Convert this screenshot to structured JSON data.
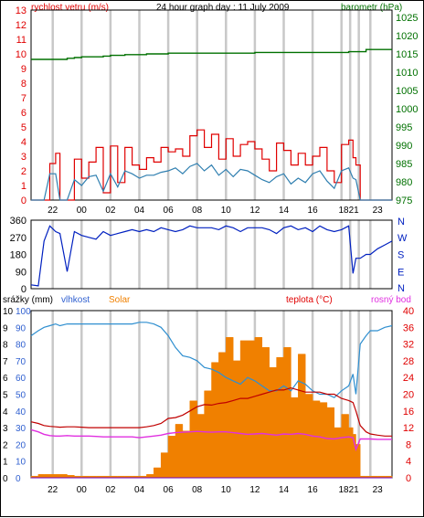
{
  "colors": {
    "wind": "#e00000",
    "barometer": "#007000",
    "humidity_line": "#2f8fd0",
    "wind_avg": "#2f7fb0",
    "direction": "#0020c0",
    "temperature": "#c00000",
    "dewpoint": "#e030e0",
    "solar": "#f08000",
    "rain": "#7000c0",
    "axis_blue": "#3060d0",
    "axis_orange": "#f08000",
    "axis_red": "#e00000",
    "axis_green": "#007000",
    "grid": "#c8c8c8"
  },
  "x_ticks": [
    "22",
    "00",
    "02",
    "04",
    "06",
    "08",
    "10",
    "12",
    "14",
    "16",
    "1821",
    "23"
  ],
  "chart_data": [
    {
      "type": "line",
      "title": "24 hour graph day : 11 July 2009",
      "y_left_label": "rychlost vetru (m/s)",
      "y_right_label": "barometr (hPa)",
      "y_left_ticks": [
        "0",
        "1",
        "2",
        "3",
        "4",
        "5",
        "6",
        "7",
        "8",
        "9",
        "10",
        "11",
        "12",
        "13"
      ],
      "y_right_ticks": [
        "975",
        "980",
        "985",
        "990",
        "995",
        "1000",
        "1005",
        "1010",
        "1015",
        "1020",
        "1025"
      ],
      "ylim_left": [
        0,
        13
      ],
      "ylim_right": [
        975,
        1027
      ],
      "x_hours": [
        20.5,
        21.0,
        21.4,
        21.8,
        22.2,
        22.5,
        23.0,
        23.5,
        24.0,
        24.5,
        25.0,
        25.5,
        26.0,
        26.5,
        27.0,
        27.5,
        28.0,
        28.5,
        29.0,
        29.5,
        30.0,
        30.5,
        31.0,
        31.5,
        32.0,
        32.5,
        33.0,
        33.5,
        34.0,
        34.5,
        35.0,
        35.5,
        36.0,
        36.5,
        37.0,
        37.5,
        38.0,
        38.5,
        39.0,
        39.5,
        40.0,
        40.5,
        41.0,
        41.5,
        42.0,
        42.5,
        42.8,
        43.0,
        43.3,
        43.7,
        44.0,
        44.5,
        45.0,
        45.5
      ],
      "series": [
        {
          "name": "wind",
          "axis": "left",
          "style": "step",
          "values": [
            0,
            0,
            0,
            2.5,
            3.2,
            0,
            0,
            2.8,
            1.5,
            2.6,
            3.6,
            0.5,
            3.7,
            1.2,
            3.6,
            2.4,
            2.1,
            2.9,
            2.6,
            3.6,
            3.3,
            3.5,
            3.0,
            4.4,
            4.8,
            3.6,
            4.5,
            2.8,
            4.2,
            3.0,
            3.8,
            4.0,
            3.5,
            2.8,
            2.0,
            3.9,
            3.4,
            2.4,
            3.2,
            2.4,
            3.0,
            3.6,
            2.0,
            1.2,
            3.8,
            4.1,
            2.9,
            2.4,
            0,
            0,
            0,
            0,
            0,
            0
          ]
        },
        {
          "name": "wind avg",
          "axis": "left",
          "style": "line",
          "values": [
            0,
            0,
            0,
            1.8,
            1.8,
            0,
            0,
            1.4,
            1.0,
            1.6,
            1.7,
            0.6,
            1.8,
            0.9,
            2.0,
            1.8,
            1.5,
            1.7,
            1.7,
            1.9,
            2.0,
            2.2,
            1.8,
            2.3,
            2.5,
            2.0,
            2.4,
            1.7,
            2.1,
            1.6,
            2.1,
            2.0,
            1.7,
            1.4,
            1.2,
            1.6,
            1.8,
            1.1,
            1.5,
            1.2,
            1.8,
            2.0,
            1.3,
            0.8,
            2.0,
            2.2,
            1.5,
            1.4,
            0,
            0,
            0,
            0,
            0,
            0
          ]
        },
        {
          "name": "barometr",
          "axis": "right",
          "style": "step",
          "values": [
            1013.5,
            1013.5,
            1013.5,
            1013.5,
            1013.5,
            1013.5,
            1013.8,
            1014.0,
            1014.2,
            1014.2,
            1014.2,
            1014.4,
            1014.6,
            1014.6,
            1014.8,
            1014.8,
            1014.8,
            1015.0,
            1015.0,
            1015.0,
            1015.2,
            1015.2,
            1015.2,
            1015.2,
            1015.2,
            1015.2,
            1015.2,
            1015.2,
            1015.2,
            1015.2,
            1015.2,
            1015.2,
            1015.4,
            1015.4,
            1015.4,
            1015.4,
            1015.4,
            1015.4,
            1015.4,
            1015.4,
            1015.4,
            1015.4,
            1015.4,
            1015.4,
            1015.4,
            1015.6,
            1015.6,
            1015.6,
            1015.6,
            1016.2,
            1016.2,
            1016.2,
            1016.2,
            1016.2
          ]
        }
      ]
    },
    {
      "type": "line",
      "y_left_ticks": [
        "0",
        "90",
        "180",
        "270",
        "360"
      ],
      "y_right_ticks": [
        "N",
        "W",
        "S",
        "E",
        "N"
      ],
      "ylim": [
        0,
        360
      ],
      "series": [
        {
          "name": "smer vetru",
          "values": [
            20,
            15,
            250,
            330,
            300,
            290,
            90,
            300,
            280,
            270,
            260,
            300,
            280,
            290,
            300,
            310,
            300,
            310,
            300,
            320,
            310,
            300,
            310,
            330,
            320,
            320,
            320,
            310,
            330,
            320,
            300,
            320,
            320,
            320,
            310,
            290,
            320,
            330,
            310,
            320,
            300,
            330,
            310,
            300,
            310,
            330,
            80,
            160,
            160,
            180,
            180,
            210,
            230,
            250
          ]
        }
      ]
    },
    {
      "type": "line",
      "y_left_labels": [
        "srážky (mm)",
        "vlhkost",
        "Solar"
      ],
      "y_right_labels": [
        "teplota (°C)",
        "rosný bod"
      ],
      "y_ticks_rain": [
        "0",
        "1",
        "2",
        "3",
        "4",
        "5",
        "6",
        "7",
        "8",
        "9",
        "10"
      ],
      "y_ticks_humidity": [
        "0",
        "10",
        "20",
        "30",
        "40",
        "50",
        "60",
        "70",
        "80",
        "90",
        "100"
      ],
      "y_ticks_solar": [
        "0",
        "100",
        "200",
        "300",
        "400",
        "500",
        "600",
        "700",
        "800",
        "900",
        "1000"
      ],
      "y_ticks_temperature": [
        "0",
        "4",
        "8",
        "12",
        "16",
        "20",
        "24",
        "28",
        "32",
        "36",
        "40"
      ],
      "ylim_humidity": [
        0,
        100
      ],
      "ylim_temperature": [
        0,
        40
      ],
      "ylim_solar": [
        0,
        1000
      ],
      "series": [
        {
          "name": "vlhkost",
          "axis": "humidity",
          "values": [
            85,
            88,
            90,
            91,
            92,
            91,
            92,
            92,
            92,
            92,
            92,
            92,
            92,
            92,
            92,
            92,
            93,
            93,
            92,
            90,
            85,
            78,
            73,
            72,
            70,
            66,
            65,
            63,
            60,
            58,
            56,
            60,
            58,
            55,
            52,
            52,
            55,
            52,
            58,
            56,
            52,
            50,
            50,
            48,
            52,
            55,
            62,
            50,
            80,
            85,
            88,
            88,
            90,
            91
          ]
        },
        {
          "name": "teplota",
          "axis": "temperature",
          "values": [
            13.4,
            13.0,
            12.5,
            12.3,
            12.2,
            12.1,
            12.2,
            12.2,
            12.1,
            12.0,
            12.0,
            12.0,
            12.0,
            12.0,
            12.0,
            12.0,
            12.0,
            12.2,
            12.5,
            13.0,
            14.2,
            14.4,
            15.0,
            16.0,
            17.0,
            17.5,
            17.4,
            17.8,
            18.0,
            18.5,
            19.0,
            19.0,
            19.5,
            20.0,
            20.5,
            21.0,
            21.0,
            21.5,
            21.0,
            20.5,
            20.5,
            20.5,
            20.0,
            20.0,
            19.0,
            18.5,
            18.0,
            16.0,
            12.5,
            11.0,
            10.5,
            10.2,
            10.0,
            10.0
          ]
        },
        {
          "name": "rosný bod",
          "axis": "temperature",
          "values": [
            11.5,
            11.0,
            10.4,
            10.1,
            10.0,
            10.0,
            10.1,
            10.0,
            10.0,
            10.0,
            9.9,
            9.8,
            9.8,
            9.8,
            9.8,
            9.8,
            9.6,
            9.8,
            10.0,
            10.2,
            10.6,
            10.8,
            10.9,
            11.0,
            11.1,
            11.0,
            10.9,
            11.0,
            11.0,
            10.8,
            10.6,
            10.4,
            10.5,
            10.6,
            10.4,
            10.2,
            10.5,
            10.4,
            10.6,
            10.4,
            10.0,
            9.8,
            9.4,
            9.3,
            9.6,
            9.8,
            9.6,
            6.8,
            9.3,
            9.3,
            9.3,
            9.2,
            9.2,
            9.2
          ]
        },
        {
          "name": "Solar",
          "axis": "solar",
          "values": [
            10,
            20,
            20,
            20,
            20,
            20,
            15,
            10,
            10,
            10,
            10,
            10,
            10,
            10,
            10,
            10,
            10,
            20,
            60,
            150,
            250,
            320,
            280,
            460,
            380,
            520,
            690,
            750,
            840,
            700,
            820,
            820,
            840,
            780,
            660,
            720,
            780,
            480,
            740,
            500,
            460,
            450,
            420,
            300,
            380,
            300,
            260,
            200,
            10,
            10,
            10,
            10,
            10,
            10
          ]
        },
        {
          "name": "srážky",
          "axis": "rain",
          "values": [
            0,
            0,
            0,
            0,
            0,
            0,
            0,
            0,
            0,
            0,
            0,
            0,
            0,
            0,
            0,
            0,
            0,
            0,
            0,
            0,
            0,
            0,
            0,
            0,
            0,
            0,
            0,
            0,
            0,
            0,
            0,
            0,
            0,
            0,
            0,
            0,
            0,
            0,
            0,
            0,
            0,
            0,
            0,
            0,
            0,
            0,
            0,
            0,
            0,
            0,
            0,
            0,
            0,
            0
          ]
        }
      ]
    }
  ]
}
